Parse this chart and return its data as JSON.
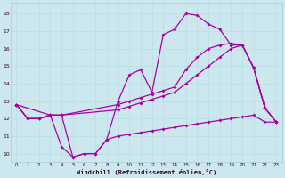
{
  "xlabel": "Windchill (Refroidissement éolien,°C)",
  "bg_color": "#cce8ee",
  "line_color": "#aa00aa",
  "grid_color": "#b8dde4",
  "xlim": [
    -0.5,
    23.5
  ],
  "ylim": [
    9.5,
    18.6
  ],
  "xticks": [
    0,
    1,
    2,
    3,
    4,
    5,
    6,
    7,
    8,
    9,
    10,
    11,
    12,
    13,
    14,
    15,
    16,
    17,
    18,
    19,
    20,
    21,
    22,
    23
  ],
  "yticks": [
    10,
    11,
    12,
    13,
    14,
    15,
    16,
    17,
    18
  ],
  "series_top_x": [
    0,
    1,
    2,
    3,
    4,
    5,
    6,
    7,
    8,
    9,
    10,
    11,
    12,
    13,
    14,
    15,
    16,
    17,
    18,
    19,
    20,
    21,
    22,
    23
  ],
  "series_top_y": [
    12.8,
    12.0,
    12.0,
    12.2,
    12.2,
    9.8,
    10.0,
    10.0,
    10.8,
    13.0,
    14.5,
    14.8,
    13.5,
    16.8,
    17.1,
    18.0,
    17.9,
    17.4,
    17.1,
    16.2,
    16.2,
    14.9,
    12.6,
    11.8
  ],
  "series_mid_x": [
    0,
    1,
    2,
    3,
    4,
    9,
    10,
    11,
    12,
    13,
    14,
    15,
    16,
    17,
    18,
    19,
    20,
    21,
    22,
    23
  ],
  "series_mid_y": [
    12.8,
    12.0,
    12.0,
    12.2,
    12.2,
    12.8,
    13.0,
    13.2,
    13.4,
    13.6,
    13.8,
    14.8,
    15.5,
    16.0,
    16.2,
    16.3,
    16.2,
    14.9,
    12.6,
    11.8
  ],
  "series_lin_x": [
    0,
    1,
    2,
    3,
    4,
    9,
    10,
    11,
    12,
    13,
    14,
    15,
    16,
    17,
    18,
    19,
    20,
    21,
    22,
    23
  ],
  "series_lin_y": [
    12.8,
    12.0,
    12.0,
    12.2,
    12.2,
    12.5,
    12.7,
    12.9,
    13.1,
    13.3,
    13.5,
    14.0,
    14.5,
    15.0,
    15.5,
    16.0,
    16.2,
    14.9,
    12.6,
    11.8
  ],
  "series_bot_x": [
    0,
    3,
    4,
    5,
    6,
    7,
    8,
    9,
    10,
    11,
    12,
    13,
    14,
    15,
    16,
    17,
    18,
    19,
    20,
    21,
    22,
    23
  ],
  "series_bot_y": [
    12.8,
    12.2,
    10.4,
    9.8,
    10.0,
    10.0,
    10.8,
    11.0,
    11.1,
    11.2,
    11.3,
    11.4,
    11.5,
    11.6,
    11.7,
    11.8,
    11.9,
    12.0,
    12.1,
    12.2,
    11.8,
    11.8
  ]
}
